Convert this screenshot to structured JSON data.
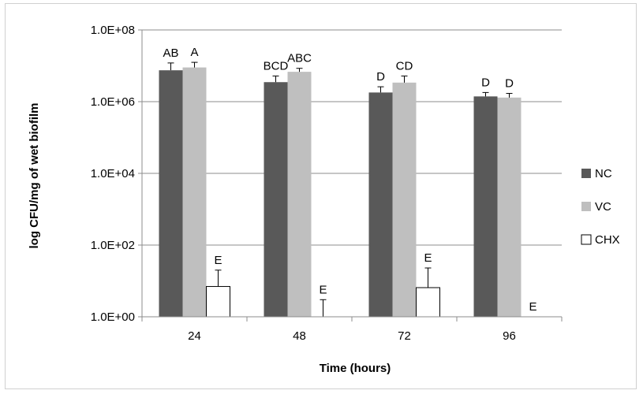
{
  "chart_data": {
    "type": "bar",
    "title": "",
    "xlabel": "Time (hours)",
    "ylabel": "log CFU/mg of wet biofilm",
    "y_scale": "log",
    "ylim": [
      1,
      100000000
    ],
    "y_ticks": [
      1,
      100,
      10000,
      1000000,
      100000000
    ],
    "y_tick_labels": [
      "1.0E+00",
      "1.0E+02",
      "1.0E+04",
      "1.0E+06",
      "1.0E+08"
    ],
    "categories": [
      "24",
      "48",
      "72",
      "96"
    ],
    "grid": true,
    "legend_position": "right",
    "series": [
      {
        "name": "NC",
        "color": "#595959",
        "values": [
          7500000,
          3500000,
          1800000,
          1400000
        ],
        "error_upper": [
          12000000,
          5200000,
          2600000,
          1800000
        ],
        "letters": [
          "AB",
          "BCD",
          "D",
          "D"
        ]
      },
      {
        "name": "VC",
        "color": "#bfbfbf",
        "values": [
          9000000,
          6800000,
          3400000,
          1300000
        ],
        "error_upper": [
          12500000,
          8500000,
          5200000,
          1700000
        ],
        "letters": [
          "A",
          "ABC",
          "CD",
          "D"
        ]
      },
      {
        "name": "CHX",
        "color": "#ffffff",
        "values": [
          7,
          1,
          6.5,
          1
        ],
        "error_upper": [
          20,
          3,
          23,
          1
        ],
        "letters": [
          "E",
          "E",
          "E",
          "E"
        ]
      }
    ]
  }
}
